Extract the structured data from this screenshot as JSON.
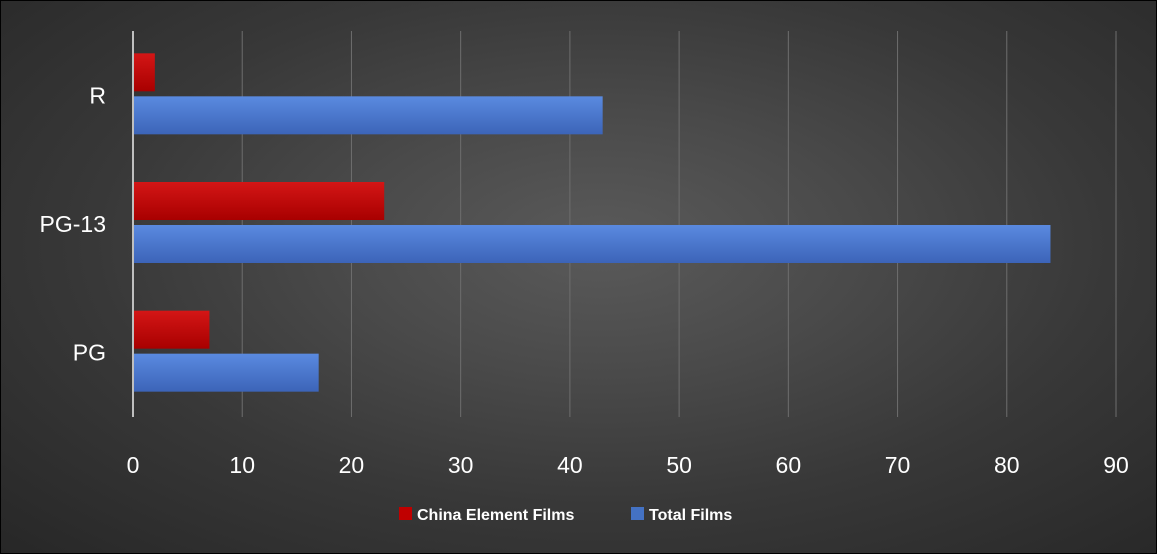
{
  "chart_data": {
    "type": "bar",
    "orientation": "horizontal",
    "categories": [
      "PG",
      "PG-13",
      "R"
    ],
    "series": [
      {
        "name": "China Element Films",
        "values": [
          7,
          23,
          2
        ],
        "color": "#c00000"
      },
      {
        "name": "Total Films",
        "values": [
          17,
          84,
          43
        ],
        "color": "#4472c4"
      }
    ],
    "xlim": [
      0,
      90
    ],
    "x_ticks": [
      "0",
      "10",
      "20",
      "30",
      "40",
      "50",
      "60",
      "70",
      "80",
      "90"
    ],
    "grid": true,
    "legend_position": "bottom",
    "title": "",
    "xlabel": "",
    "ylabel": ""
  }
}
